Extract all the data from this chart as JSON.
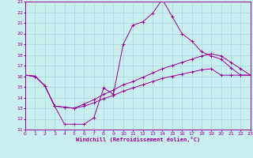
{
  "bg_color": "#c8eef0",
  "grid_color": "#a8d8dc",
  "line_color": "#990099",
  "xlabel": "Windchill (Refroidissement éolien,°C)",
  "xlim": [
    0,
    23
  ],
  "ylim": [
    11,
    23
  ],
  "xticks": [
    0,
    1,
    2,
    3,
    4,
    5,
    6,
    7,
    8,
    9,
    10,
    11,
    12,
    13,
    14,
    15,
    16,
    17,
    18,
    19,
    20,
    21,
    22,
    23
  ],
  "yticks": [
    11,
    12,
    13,
    14,
    15,
    16,
    17,
    18,
    19,
    20,
    21,
    22,
    23
  ],
  "line1_x": [
    0,
    1,
    2,
    3,
    4,
    5,
    6,
    7,
    8,
    9,
    10,
    11,
    12,
    13,
    14,
    15,
    16,
    17,
    18,
    19,
    20,
    21,
    22,
    23
  ],
  "line1_y": [
    16.1,
    16.0,
    15.1,
    13.2,
    11.5,
    11.5,
    11.5,
    12.1,
    14.9,
    14.3,
    19.0,
    20.8,
    21.1,
    21.9,
    23.2,
    21.6,
    20.0,
    19.3,
    18.3,
    17.9,
    17.6,
    16.8,
    16.1,
    16.1
  ],
  "line2_x": [
    0,
    1,
    2,
    3,
    4,
    5,
    6,
    7,
    8,
    9,
    10,
    11,
    12,
    13,
    14,
    15,
    16,
    17,
    18,
    19,
    20,
    21,
    22,
    23
  ],
  "line2_y": [
    16.1,
    16.0,
    15.1,
    13.2,
    13.1,
    13.0,
    13.4,
    13.8,
    14.3,
    14.7,
    15.2,
    15.5,
    15.9,
    16.3,
    16.7,
    17.0,
    17.3,
    17.6,
    17.9,
    18.1,
    17.9,
    17.3,
    16.7,
    16.1
  ],
  "line3_x": [
    0,
    1,
    2,
    3,
    4,
    5,
    6,
    7,
    8,
    9,
    10,
    11,
    12,
    13,
    14,
    15,
    16,
    17,
    18,
    19,
    20,
    21,
    22,
    23
  ],
  "line3_y": [
    16.1,
    16.0,
    15.1,
    13.2,
    13.1,
    13.0,
    13.2,
    13.5,
    13.9,
    14.2,
    14.6,
    14.9,
    15.2,
    15.5,
    15.8,
    16.0,
    16.2,
    16.4,
    16.6,
    16.7,
    16.1,
    16.1,
    16.1,
    16.1
  ]
}
